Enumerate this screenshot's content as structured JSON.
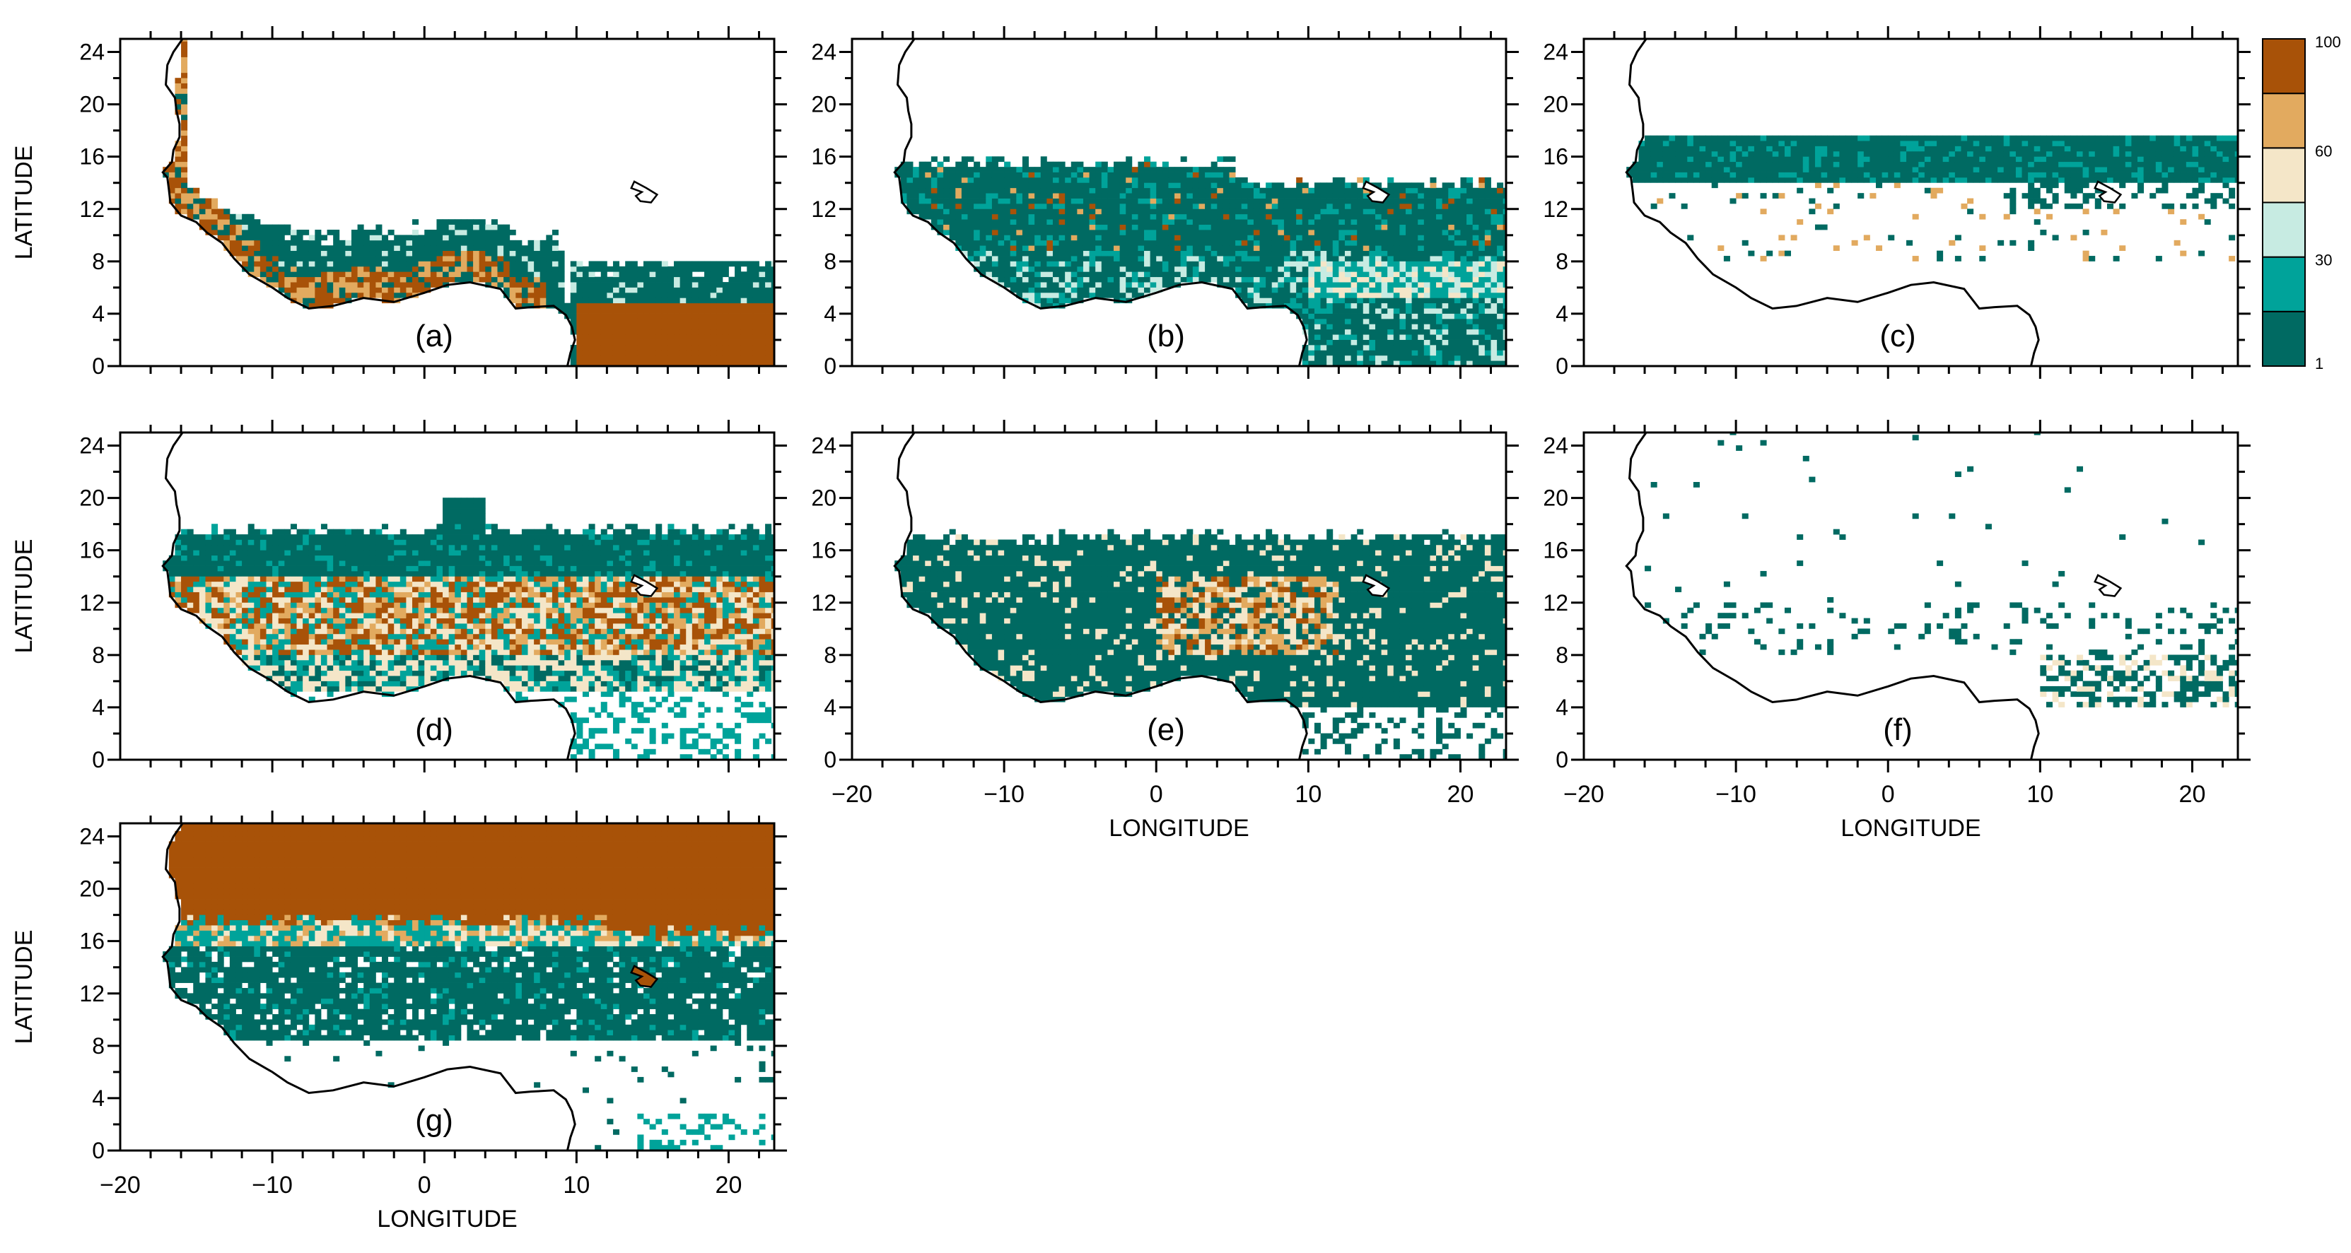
{
  "figure": {
    "panels": [
      {
        "label": "(a)",
        "pattern": "a"
      },
      {
        "label": "(b)",
        "pattern": "b"
      },
      {
        "label": "(c)",
        "pattern": "c"
      },
      {
        "label": "(d)",
        "pattern": "d"
      },
      {
        "label": "(e)",
        "pattern": "e"
      },
      {
        "label": "(f)",
        "pattern": "f"
      },
      {
        "label": "(g)",
        "pattern": "g"
      }
    ],
    "y_axis_label": "LATITUDE",
    "x_axis_label": "LONGITUDE",
    "lat_range": [
      0,
      25
    ],
    "lon_range": [
      -20,
      23
    ],
    "lat_ticks": [
      0,
      4,
      8,
      12,
      16,
      20,
      24
    ],
    "lat_tick_labels": [
      "0",
      "4",
      "8",
      "12",
      "16",
      "20",
      "24"
    ],
    "lon_ticks": [
      -20,
      -10,
      0,
      10,
      20
    ],
    "lon_tick_labels": [
      "−20",
      "−10",
      "0",
      "10",
      "20"
    ],
    "colorbar": {
      "labels": [
        {
          "value": 100,
          "text": "100"
        },
        {
          "value": 60,
          "text": "60"
        },
        {
          "value": 30,
          "text": "30"
        },
        {
          "value": 1,
          "text": "1"
        }
      ],
      "bins": [
        {
          "lo": 1,
          "hi": 15,
          "color": "#006a62"
        },
        {
          "lo": 15,
          "hi": 30,
          "color": "#00a39a"
        },
        {
          "lo": 30,
          "hi": 45,
          "color": "#c7ebe2"
        },
        {
          "lo": 45,
          "hi": 60,
          "color": "#f4e6c8"
        },
        {
          "lo": 60,
          "hi": 80,
          "color": "#e2aa5f"
        },
        {
          "lo": 80,
          "hi": 100,
          "color": "#a85208"
        }
      ]
    }
  }
}
